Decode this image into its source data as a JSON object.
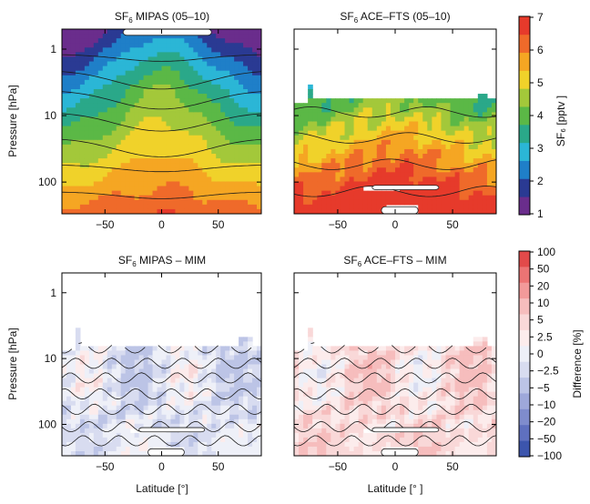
{
  "figure": {
    "shared_y_label": "Pressure [hPa]",
    "shared_x_label_left": "Latitude [°]",
    "shared_x_label_right": "Latitude [° ]"
  },
  "colorbars": [
    {
      "id": "sf6",
      "label": "SF₆ [pptv ]",
      "tick_labels": [
        "1",
        "2",
        "3",
        "4",
        "5",
        "6",
        "7"
      ],
      "colors": [
        "#6a2d8c",
        "#2a3a93",
        "#1f7fc8",
        "#2bb6d6",
        "#2aa889",
        "#5bb846",
        "#a3c83a",
        "#f0d22a",
        "#f5a623",
        "#ef6a2a",
        "#e63a2b"
      ]
    },
    {
      "id": "diff",
      "label": "Difference [%]",
      "tick_labels": [
        "100",
        "50",
        "20",
        "10",
        "5",
        "2.5",
        "0",
        "−2.5",
        "−5",
        "−10",
        "−20",
        "−50",
        "−100"
      ],
      "colors": [
        "#e24a4a",
        "#ec7474",
        "#f29a9a",
        "#f6bdbd",
        "#f9d8d8",
        "#fcecec",
        "#eef0f8",
        "#d8dcf0",
        "#bcc4e6",
        "#9ea8da",
        "#7f8ccd",
        "#5f70bf",
        "#3c55ad"
      ]
    }
  ],
  "chart_data": [
    {
      "type": "heatmap",
      "title_main": "SF",
      "title_sub": "6",
      "title_rest": " MIPAS (05–10)",
      "ylabel": "Pressure [hPa]",
      "xlabel": "",
      "x_ticks": [
        "−50",
        "0",
        "50"
      ],
      "y_ticks": [
        "1",
        "10",
        "100"
      ],
      "xlim": [
        -88,
        88
      ],
      "ylim": [
        0.5,
        300
      ],
      "yscale": "log",
      "colorbar": "sf6",
      "field": "mipas"
    },
    {
      "type": "heatmap",
      "title_main": "SF",
      "title_sub": "6",
      "title_rest": " ACE–FTS (05–10)",
      "ylabel": "",
      "xlabel": "",
      "x_ticks": [
        "−50",
        "0",
        "50"
      ],
      "y_ticks": [],
      "xlim": [
        -88,
        88
      ],
      "ylim": [
        0.5,
        300
      ],
      "yscale": "log",
      "colorbar": "sf6",
      "field": "ace"
    },
    {
      "type": "heatmap",
      "title_main": "SF",
      "title_sub": "6",
      "title_rest": " MIPAS – MIM",
      "ylabel": "Pressure [hPa]",
      "xlabel": "Latitude [°]",
      "x_ticks": [
        "−50",
        "0",
        "50"
      ],
      "y_ticks": [
        "1",
        "10",
        "100"
      ],
      "xlim": [
        -88,
        88
      ],
      "ylim": [
        0.5,
        300
      ],
      "yscale": "log",
      "colorbar": "diff",
      "field": "diff_mipas"
    },
    {
      "type": "heatmap",
      "title_main": "SF",
      "title_sub": "6",
      "title_rest": " ACE–FTS – MIM",
      "ylabel": "",
      "xlabel": "Latitude [° ]",
      "x_ticks": [
        "−50",
        "0",
        "50"
      ],
      "y_ticks": [],
      "xlim": [
        -88,
        88
      ],
      "ylim": [
        0.5,
        300
      ],
      "yscale": "log",
      "colorbar": "diff",
      "field": "diff_ace"
    }
  ]
}
